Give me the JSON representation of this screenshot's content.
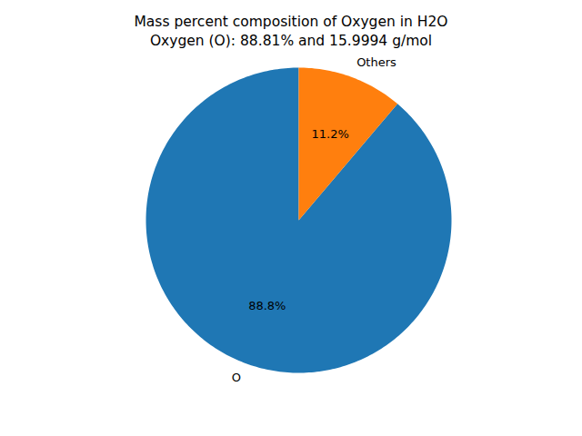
{
  "chart_data": {
    "type": "pie",
    "title": "Mass percent composition of Oxygen in H2O\nOxygen (O): 88.81% and 15.9994 g/mol",
    "categories": [
      "O",
      "Others"
    ],
    "values": [
      88.81,
      11.19
    ],
    "value_labels": [
      "88.8%",
      "11.2%"
    ],
    "colors": [
      "#1f77b4",
      "#ff7f0e"
    ],
    "data_labels": true
  }
}
